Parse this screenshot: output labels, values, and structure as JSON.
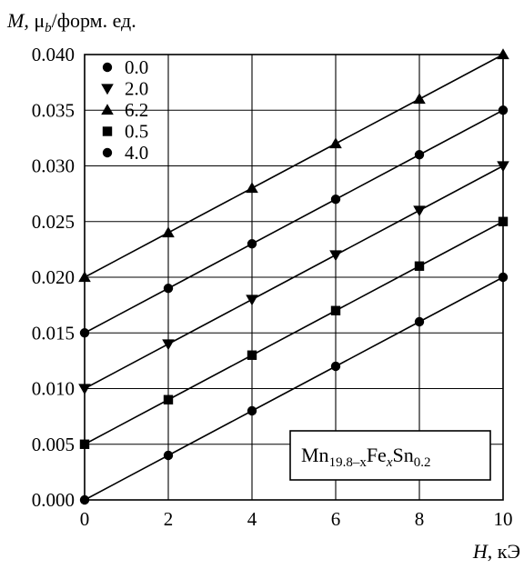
{
  "chart_data": {
    "type": "line",
    "x_title": {
      "var": "H",
      "rest": ", кЭ"
    },
    "y_title": {
      "var": "M",
      "rest1": ", μ",
      "sub": "b",
      "rest2": "/форм. ед."
    },
    "xlim": [
      0,
      10
    ],
    "ylim": [
      0.0,
      0.04
    ],
    "x_ticks": [
      0,
      2,
      4,
      6,
      8,
      10
    ],
    "x_tick_labels": [
      "0",
      "2",
      "4",
      "6",
      "8",
      "10"
    ],
    "y_ticks": [
      0.0,
      0.005,
      0.01,
      0.015,
      0.02,
      0.025,
      0.03,
      0.035,
      0.04
    ],
    "y_tick_labels": [
      "0.000",
      "0.005",
      "0.010",
      "0.015",
      "0.020",
      "0.025",
      "0.030",
      "0.035",
      "0.040"
    ],
    "grid": true,
    "legend_position": "top-left",
    "annotation": {
      "parts": [
        {
          "text": "Mn",
          "sub": false
        },
        {
          "text": "19.8–x",
          "sub": true,
          "italic_part": "x"
        },
        {
          "text": "Fe",
          "sub": false
        },
        {
          "text": "x",
          "sub": true,
          "italic": true
        },
        {
          "text": "Sn",
          "sub": false
        },
        {
          "text": "0.2",
          "sub": true
        }
      ]
    },
    "series": [
      {
        "name": "0.0",
        "marker": "circle",
        "x": [
          0,
          2,
          4,
          6,
          8,
          10
        ],
        "y": [
          0.0,
          0.004,
          0.008,
          0.012,
          0.016,
          0.02
        ]
      },
      {
        "name": "2.0",
        "marker": "triangle-down",
        "x": [
          0,
          2,
          4,
          6,
          8,
          10
        ],
        "y": [
          0.01,
          0.014,
          0.018,
          0.022,
          0.026,
          0.03
        ]
      },
      {
        "name": "6.2",
        "marker": "triangle-up",
        "x": [
          0,
          2,
          4,
          6,
          8,
          10
        ],
        "y": [
          0.02,
          0.024,
          0.028,
          0.032,
          0.036,
          0.04
        ]
      },
      {
        "name": "0.5",
        "marker": "square",
        "x": [
          0,
          2,
          4,
          6,
          8,
          10
        ],
        "y": [
          0.005,
          0.009,
          0.013,
          0.017,
          0.021,
          0.025
        ]
      },
      {
        "name": "4.0",
        "marker": "circle",
        "x": [
          0,
          2,
          4,
          6,
          8,
          10
        ],
        "y": [
          0.015,
          0.019,
          0.023,
          0.027,
          0.031,
          0.035
        ]
      }
    ]
  }
}
